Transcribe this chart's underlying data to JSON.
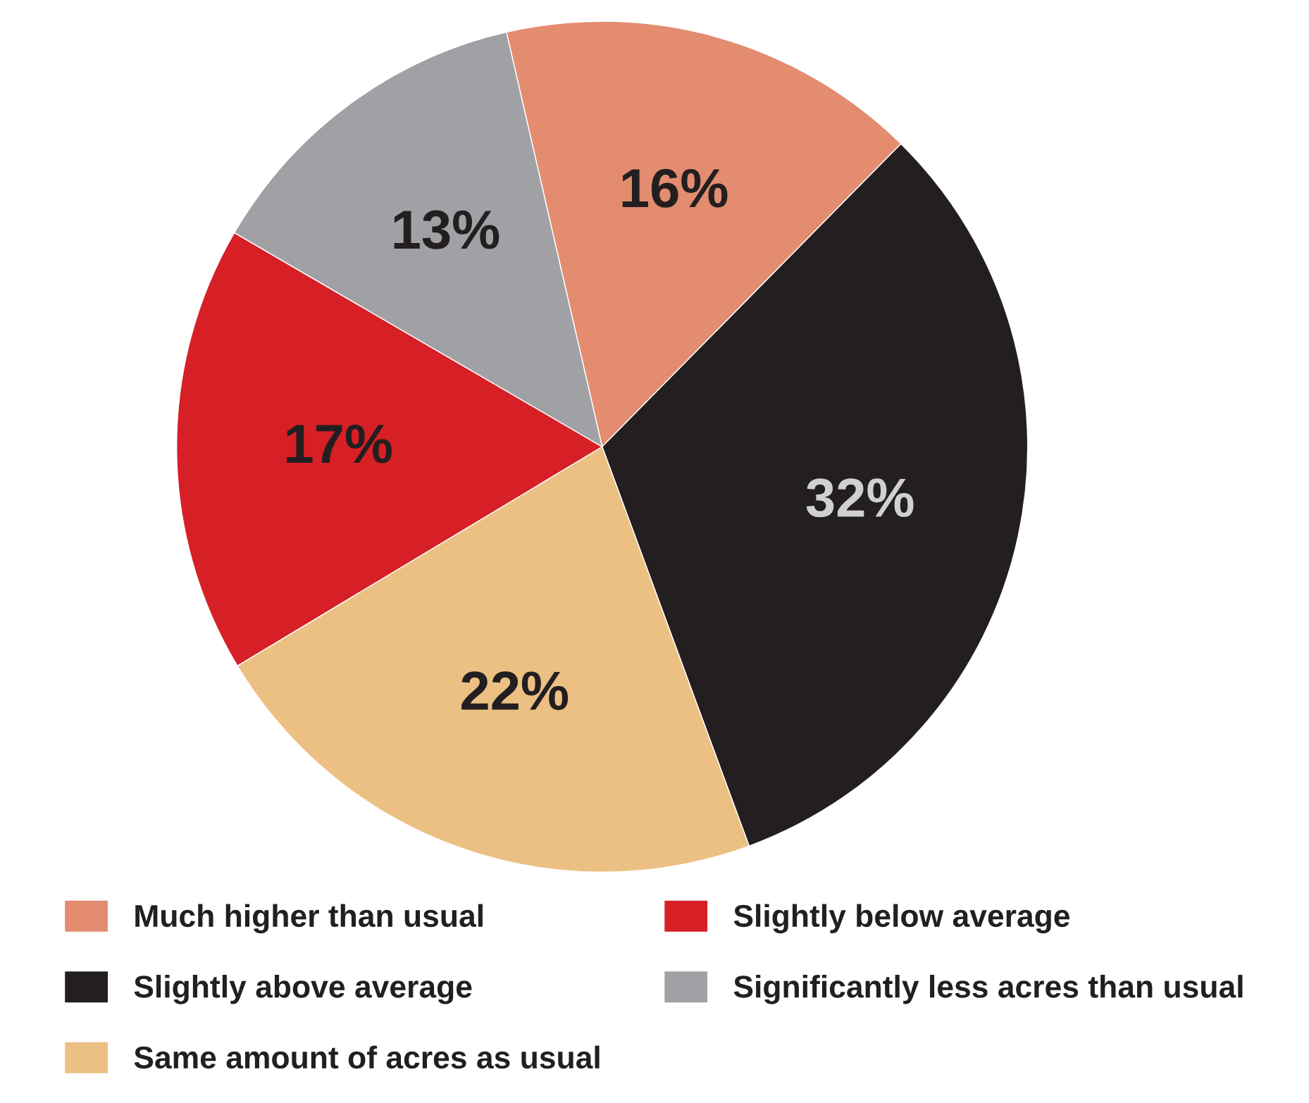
{
  "chart_data": {
    "type": "pie",
    "categories": [
      "Much higher than usual",
      "Slightly above average",
      "Same amount of acres as usual",
      "Slightly below average",
      "Significantly less acres than usual"
    ],
    "values": [
      16,
      32,
      22,
      17,
      13
    ],
    "colors": [
      "#e38c70",
      "#231f20",
      "#ecc083",
      "#d71f26",
      "#a0a1a5"
    ],
    "value_labels": [
      "16%",
      "32%",
      "22%",
      "17%",
      "13%"
    ],
    "legend": "bottom"
  }
}
